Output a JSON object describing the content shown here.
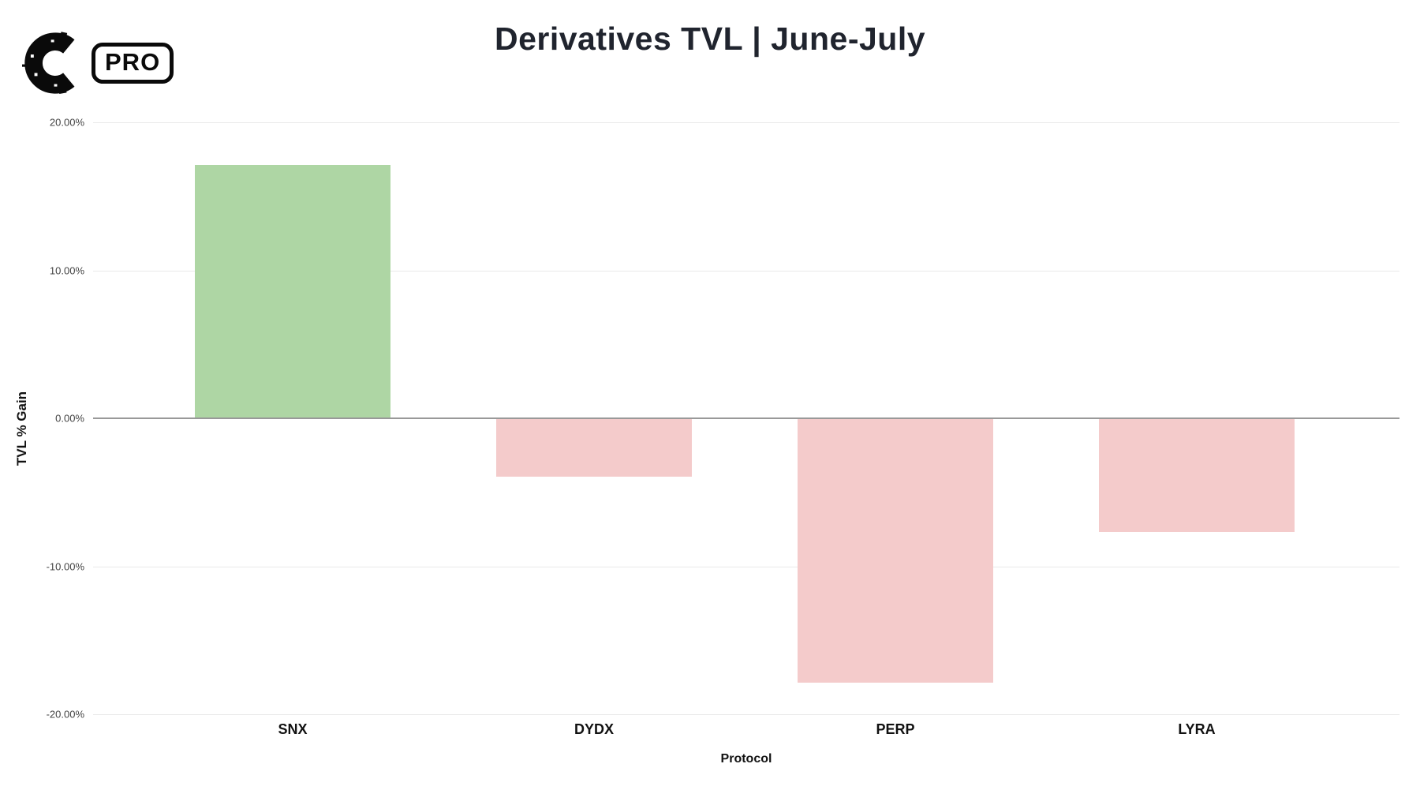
{
  "logo": {
    "brand_letter": "C",
    "badge_label": "PRO"
  },
  "header": {
    "title": "Derivatives TVL | June-July"
  },
  "chart_data": {
    "type": "bar",
    "title": "Derivatives TVL | June-July",
    "categories": [
      "SNX",
      "DYDX",
      "PERP",
      "LYRA"
    ],
    "values": [
      17.1,
      -3.9,
      -17.8,
      -7.6
    ],
    "xlabel": "Protocol",
    "ylabel": "TVL % Gain",
    "ylim": [
      -20,
      20
    ],
    "yticks": [
      20,
      10,
      0,
      -10,
      -20
    ],
    "ytick_labels": [
      "20.00%",
      "10.00%",
      "0.00%",
      "-10.00%",
      "-20.00%"
    ],
    "grid": true,
    "legend": false,
    "colors": {
      "positive_bar": "#aed6a4",
      "negative_bar": "#f4cbcb",
      "zero_line": "#999999",
      "gridline": "#e9e9e9",
      "tick_text": "#444444",
      "title_text": "#20242e"
    }
  }
}
